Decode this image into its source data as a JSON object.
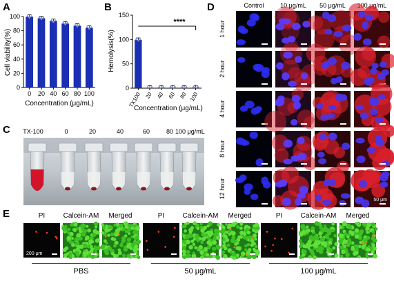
{
  "panels": {
    "A": {
      "letter": "A"
    },
    "B": {
      "letter": "B"
    },
    "C": {
      "letter": "C"
    },
    "D": {
      "letter": "D"
    },
    "E": {
      "letter": "E"
    }
  },
  "chart_data": [
    {
      "type": "bar",
      "panel": "A",
      "categories": [
        "0",
        "20",
        "40",
        "60",
        "80",
        "100"
      ],
      "values": [
        99.5,
        97.5,
        93.5,
        90,
        87,
        84
      ],
      "xlabel": "Concentration (μg/mL)",
      "ylabel": "Cell viability(%)",
      "ylim": [
        0,
        100
      ],
      "yticks": [
        "0",
        "20",
        "40",
        "60",
        "80",
        "100"
      ],
      "color": "#1a2fb3"
    },
    {
      "type": "bar",
      "panel": "B",
      "categories": [
        "TX100",
        "20",
        "40",
        "60",
        "80",
        "100"
      ],
      "values": [
        99,
        0.8,
        1.0,
        1.1,
        1.0,
        1.3
      ],
      "xlabel": "Concentration (μg/mL)",
      "ylabel": "Hemolysis(%)",
      "ylim": [
        0,
        150
      ],
      "yticks": [
        "0",
        "50",
        "100",
        "150"
      ],
      "significance": "****",
      "color": "#1a2fb3"
    }
  ],
  "panelC": {
    "labels": [
      "TX-100",
      "0",
      "20",
      "40",
      "60",
      "80",
      "100 μg/mL"
    ]
  },
  "panelD": {
    "columns": [
      "Control",
      "10 μg/mL",
      "50 μg/mL",
      "100 μg/mL"
    ],
    "rows": [
      "1 hour",
      "2 hour",
      "4 hour",
      "8 hour",
      "12 hour"
    ],
    "scale": "50 μm"
  },
  "panelE": {
    "subheads": [
      "PI",
      "Calcein-AM",
      "Merged"
    ],
    "groups": [
      "PBS",
      "50 μg/mL",
      "100 μg/mL"
    ],
    "scale": "200 μm"
  }
}
